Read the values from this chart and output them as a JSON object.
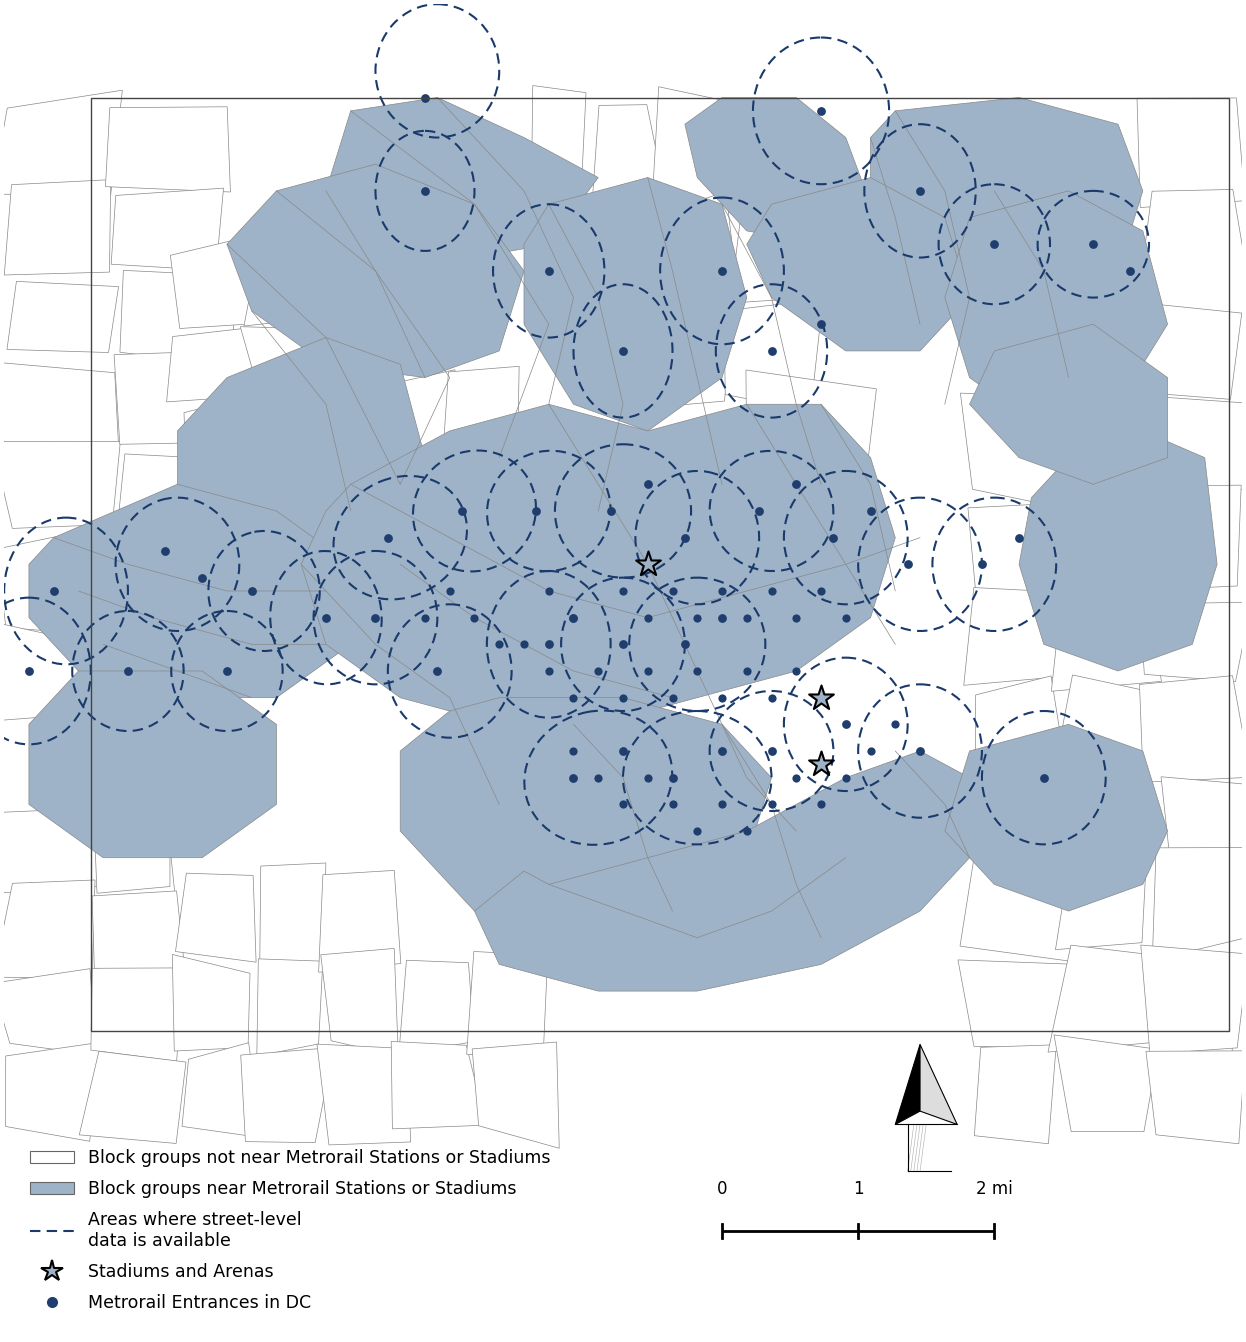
{
  "bg_color": "#ffffff",
  "block_near_color": "#9eb3c8",
  "block_far_color": "#ffffff",
  "block_edge_color": "#888888",
  "circle_color": "#1a3a6b",
  "dot_color": "#1f3e6e",
  "star_fill_color": "#9eb3c8",
  "star_edge_color": "#000000",
  "legend_items": [
    "Block groups not near Metrorail Stations or Stadiums",
    "Block groups near Metrorail Stations or Stadiums",
    "Areas where street-level\ndata is available",
    "Stadiums and Arenas",
    "Metrorail Entrances in DC"
  ]
}
